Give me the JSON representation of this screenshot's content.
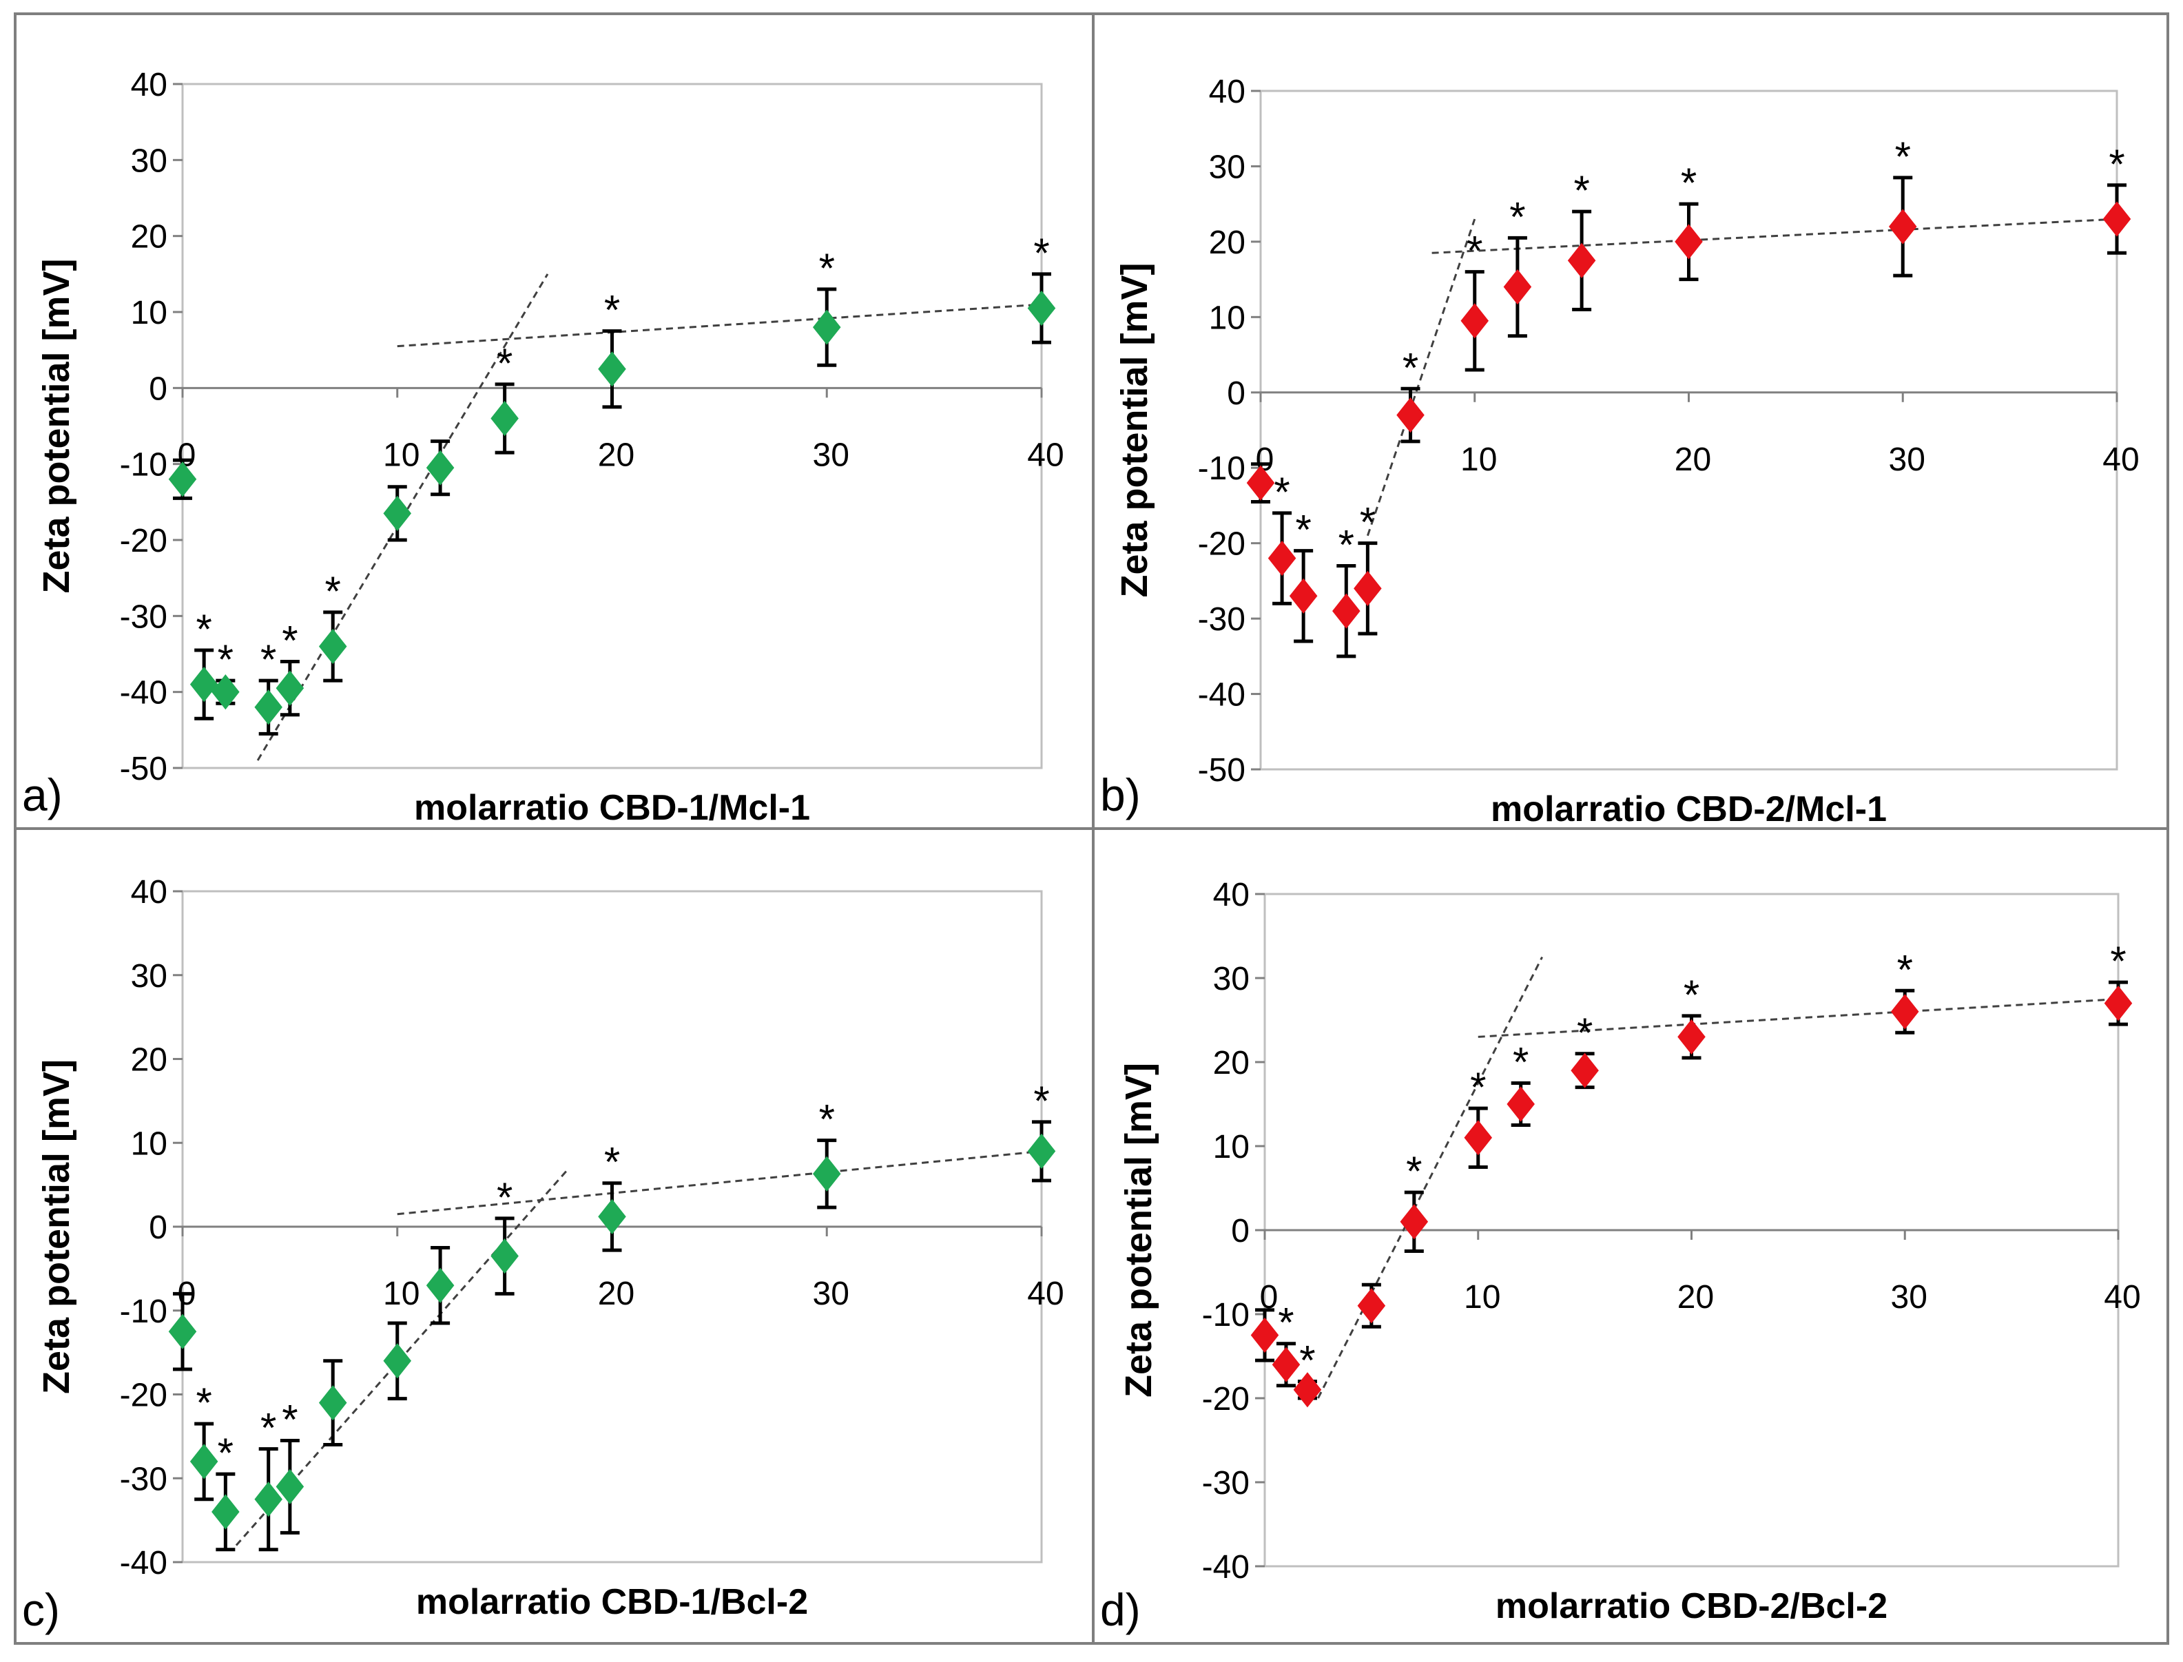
{
  "chart_data": [
    {
      "panel": "a)",
      "type": "scatter",
      "xlabel": "molarratio CBD-1/Mcl-1",
      "ylabel": "Zeta potential [mV]",
      "xlim": [
        0,
        40
      ],
      "ylim": [
        -50,
        40
      ],
      "xticks": [
        0,
        10,
        20,
        30,
        40
      ],
      "yticks": [
        40,
        30,
        20,
        10,
        0,
        -10,
        -20,
        -30,
        -40,
        -50
      ],
      "marker": "diamond",
      "marker_color": "#1faa55",
      "points": [
        {
          "x": 0,
          "y": -12,
          "err": 2.5,
          "star": false
        },
        {
          "x": 1,
          "y": -39,
          "err": 4.5,
          "star": true
        },
        {
          "x": 2,
          "y": -40,
          "err": 1.5,
          "star": true
        },
        {
          "x": 4,
          "y": -42,
          "err": 3.5,
          "star": true
        },
        {
          "x": 5,
          "y": -39.5,
          "err": 3.5,
          "star": true
        },
        {
          "x": 7,
          "y": -34,
          "err": 4.5,
          "star": true
        },
        {
          "x": 10,
          "y": -16.5,
          "err": 3.5,
          "star": false
        },
        {
          "x": 12,
          "y": -10.5,
          "err": 3.5,
          "star": false
        },
        {
          "x": 15,
          "y": -4,
          "err": 4.5,
          "star": true
        },
        {
          "x": 20,
          "y": 2.5,
          "err": 5,
          "star": true
        },
        {
          "x": 30,
          "y": 8,
          "err": 5,
          "star": true
        },
        {
          "x": 40,
          "y": 10.5,
          "err": 4.5,
          "star": true
        }
      ],
      "trend_lines": [
        {
          "x1": 3.5,
          "y1": -49,
          "x2": 17,
          "y2": 15
        },
        {
          "x1": 10,
          "y1": 5.5,
          "x2": 40,
          "y2": 11
        }
      ]
    },
    {
      "panel": "b)",
      "type": "scatter",
      "xlabel": "molarratio CBD-2/Mcl-1",
      "ylabel": "Zeta potential [mV]",
      "xlim": [
        0,
        40
      ],
      "ylim": [
        -50,
        40
      ],
      "xticks": [
        0,
        10,
        20,
        30,
        40
      ],
      "yticks": [
        40,
        30,
        20,
        10,
        0,
        -10,
        -20,
        -30,
        -40,
        -50
      ],
      "marker": "diamond",
      "marker_color": "#e8121a",
      "points": [
        {
          "x": 0,
          "y": -12,
          "err": 2.5,
          "star": false
        },
        {
          "x": 1,
          "y": -22,
          "err": 6,
          "star": true
        },
        {
          "x": 2,
          "y": -27,
          "err": 6,
          "star": true
        },
        {
          "x": 4,
          "y": -29,
          "err": 6,
          "star": true
        },
        {
          "x": 5,
          "y": -26,
          "err": 6,
          "star": true
        },
        {
          "x": 7,
          "y": -3,
          "err": 3.5,
          "star": true
        },
        {
          "x": 10,
          "y": 9.5,
          "err": 6.5,
          "star": true
        },
        {
          "x": 12,
          "y": 14,
          "err": 6.5,
          "star": true
        },
        {
          "x": 15,
          "y": 17.5,
          "err": 6.5,
          "star": true
        },
        {
          "x": 20,
          "y": 20,
          "err": 5,
          "star": true
        },
        {
          "x": 30,
          "y": 22,
          "err": 6.5,
          "star": true
        },
        {
          "x": 40,
          "y": 23,
          "err": 4.5,
          "star": true
        }
      ],
      "trend_lines": [
        {
          "x1": 5,
          "y1": -19,
          "x2": 10,
          "y2": 23
        },
        {
          "x1": 8,
          "y1": 18.5,
          "x2": 40,
          "y2": 23
        }
      ]
    },
    {
      "panel": "c)",
      "type": "scatter",
      "xlabel": "molarratio CBD-1/Bcl-2",
      "ylabel": "Zeta potential [mV]",
      "xlim": [
        0,
        40
      ],
      "ylim": [
        -40,
        40
      ],
      "xticks": [
        0,
        10,
        20,
        30,
        40
      ],
      "yticks": [
        40,
        30,
        20,
        10,
        0,
        -10,
        -20,
        -30,
        -40
      ],
      "marker": "diamond",
      "marker_color": "#1faa55",
      "points": [
        {
          "x": 0,
          "y": -12.5,
          "err": 4.5,
          "star": false
        },
        {
          "x": 1,
          "y": -28,
          "err": 4.5,
          "star": true
        },
        {
          "x": 2,
          "y": -34,
          "err": 4.5,
          "star": true
        },
        {
          "x": 4,
          "y": -32.5,
          "err": 6,
          "star": true
        },
        {
          "x": 5,
          "y": -31,
          "err": 5.5,
          "star": true
        },
        {
          "x": 7,
          "y": -21,
          "err": 5,
          "star": false
        },
        {
          "x": 10,
          "y": -16,
          "err": 4.5,
          "star": false
        },
        {
          "x": 12,
          "y": -7,
          "err": 4.5,
          "star": false
        },
        {
          "x": 15,
          "y": -3.5,
          "err": 4.5,
          "star": true
        },
        {
          "x": 20,
          "y": 1.2,
          "err": 4,
          "star": true
        },
        {
          "x": 30,
          "y": 6.3,
          "err": 4,
          "star": true
        },
        {
          "x": 40,
          "y": 9,
          "err": 3.5,
          "star": true
        }
      ],
      "trend_lines": [
        {
          "x1": 2.5,
          "y1": -38,
          "x2": 18,
          "y2": 7
        },
        {
          "x1": 10,
          "y1": 1.5,
          "x2": 40,
          "y2": 9
        }
      ]
    },
    {
      "panel": "d)",
      "type": "scatter",
      "xlabel": "molarratio CBD-2/Bcl-2",
      "ylabel": "Zeta potential [mV]",
      "xlim": [
        0,
        40
      ],
      "ylim": [
        -40,
        40
      ],
      "xticks": [
        0,
        10,
        20,
        30,
        40
      ],
      "yticks": [
        40,
        30,
        20,
        10,
        0,
        -10,
        -20,
        -30,
        -40
      ],
      "marker": "diamond",
      "marker_color": "#e8121a",
      "points": [
        {
          "x": 0,
          "y": -12.5,
          "err": 3,
          "star": false
        },
        {
          "x": 1,
          "y": -16,
          "err": 2.5,
          "star": true
        },
        {
          "x": 2,
          "y": -19,
          "err": 1,
          "star": true
        },
        {
          "x": 5,
          "y": -9,
          "err": 2.5,
          "star": false
        },
        {
          "x": 7,
          "y": 1,
          "err": 3.5,
          "star": true
        },
        {
          "x": 10,
          "y": 11,
          "err": 3.5,
          "star": true
        },
        {
          "x": 12,
          "y": 15,
          "err": 2.5,
          "star": true
        },
        {
          "x": 15,
          "y": 19,
          "err": 2,
          "star": true
        },
        {
          "x": 20,
          "y": 23,
          "err": 2.5,
          "star": true
        },
        {
          "x": 30,
          "y": 26,
          "err": 2.5,
          "star": true
        },
        {
          "x": 40,
          "y": 27,
          "err": 2.5,
          "star": true
        }
      ],
      "trend_lines": [
        {
          "x1": 2.5,
          "y1": -20,
          "x2": 13,
          "y2": 32.5
        },
        {
          "x1": 10,
          "y1": 23,
          "x2": 40,
          "y2": 27.5
        }
      ]
    }
  ]
}
